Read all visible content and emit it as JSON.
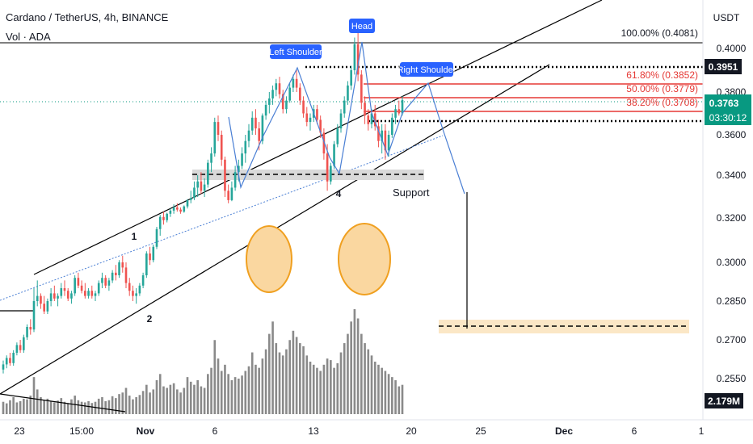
{
  "header": {
    "symbol": "Cardano / TetherUS, 4h, BINANCE",
    "volume_label": "Vol · ADA",
    "currency": "USDT"
  },
  "colors": {
    "up": "#26a69a",
    "down": "#ef5350",
    "pattern_line": "#4a7fd4",
    "channel": "#000000",
    "fib": "#e53935",
    "tag_bg": "#2962ff",
    "circle_fill": "#fad7a0",
    "circle_stroke": "#f0a020",
    "target_zone": "#fbe7c6",
    "volume_bar": "#8a8a8a",
    "price_tag": "#089981"
  },
  "chart_data": {
    "type": "candlestick",
    "price_axis": {
      "ticks": [
        "0.4000",
        "0.3800",
        "0.3600",
        "0.3400",
        "0.3200",
        "0.3000",
        "0.2850",
        "0.2700",
        "0.2550"
      ]
    },
    "time_axis": {
      "ticks": [
        "23",
        "15:00",
        "Nov",
        "6",
        "13",
        "20",
        "25",
        "Dec",
        "6",
        "1"
      ]
    },
    "fib_levels": [
      {
        "label": "100.00% (0.4081)",
        "value": 0.4081
      },
      {
        "label": "61.80% (0.3852)",
        "value": 0.3852
      },
      {
        "label": "50.00% (0.3779)",
        "value": 0.3779
      },
      {
        "label": "38.20% (0.3708)",
        "value": 0.3708
      }
    ],
    "price_labels": {
      "resistance": "0.3951",
      "last_price": "0.3763",
      "countdown": "03:30:12",
      "volume": "2.179M"
    },
    "pattern_labels": {
      "left_shoulder": "Left Shoulder",
      "head": "Head",
      "right_shoulder": "Right Shoulder",
      "support": "Support"
    },
    "wave_labels": [
      "1",
      "2",
      "4"
    ],
    "candles": [
      [
        0.2585,
        0.262,
        0.257,
        0.2605
      ],
      [
        0.2605,
        0.264,
        0.259,
        0.263
      ],
      [
        0.263,
        0.265,
        0.26,
        0.261
      ],
      [
        0.261,
        0.266,
        0.26,
        0.265
      ],
      [
        0.265,
        0.269,
        0.264,
        0.268
      ],
      [
        0.268,
        0.27,
        0.265,
        0.266
      ],
      [
        0.266,
        0.272,
        0.265,
        0.271
      ],
      [
        0.271,
        0.276,
        0.27,
        0.275
      ],
      [
        0.275,
        0.278,
        0.272,
        0.274
      ],
      [
        0.274,
        0.29,
        0.273,
        0.285
      ],
      [
        0.285,
        0.293,
        0.283,
        0.287
      ],
      [
        0.287,
        0.288,
        0.282,
        0.284
      ],
      [
        0.284,
        0.287,
        0.28,
        0.281
      ],
      [
        0.281,
        0.286,
        0.28,
        0.285
      ],
      [
        0.285,
        0.29,
        0.283,
        0.288
      ],
      [
        0.288,
        0.291,
        0.285,
        0.286
      ],
      [
        0.286,
        0.288,
        0.283,
        0.287
      ],
      [
        0.287,
        0.292,
        0.286,
        0.29
      ],
      [
        0.29,
        0.293,
        0.287,
        0.289
      ],
      [
        0.289,
        0.29,
        0.285,
        0.286
      ],
      [
        0.286,
        0.289,
        0.284,
        0.288
      ],
      [
        0.288,
        0.295,
        0.287,
        0.294
      ],
      [
        0.294,
        0.296,
        0.29,
        0.291
      ],
      [
        0.291,
        0.293,
        0.288,
        0.289
      ],
      [
        0.289,
        0.292,
        0.286,
        0.287
      ],
      [
        0.287,
        0.29,
        0.286,
        0.289
      ],
      [
        0.289,
        0.291,
        0.286,
        0.287
      ],
      [
        0.287,
        0.289,
        0.285,
        0.288
      ],
      [
        0.288,
        0.293,
        0.287,
        0.292
      ],
      [
        0.292,
        0.296,
        0.29,
        0.294
      ],
      [
        0.294,
        0.295,
        0.29,
        0.291
      ],
      [
        0.291,
        0.294,
        0.289,
        0.293
      ],
      [
        0.293,
        0.297,
        0.292,
        0.296
      ],
      [
        0.296,
        0.299,
        0.293,
        0.295
      ],
      [
        0.295,
        0.301,
        0.294,
        0.3
      ],
      [
        0.3,
        0.303,
        0.296,
        0.298
      ],
      [
        0.298,
        0.3,
        0.29,
        0.292
      ],
      [
        0.292,
        0.294,
        0.287,
        0.289
      ],
      [
        0.289,
        0.291,
        0.285,
        0.287
      ],
      [
        0.287,
        0.29,
        0.284,
        0.288
      ],
      [
        0.288,
        0.292,
        0.287,
        0.291
      ],
      [
        0.291,
        0.296,
        0.29,
        0.295
      ],
      [
        0.295,
        0.305,
        0.294,
        0.304
      ],
      [
        0.304,
        0.307,
        0.299,
        0.301
      ],
      [
        0.301,
        0.308,
        0.3,
        0.307
      ],
      [
        0.307,
        0.316,
        0.306,
        0.315
      ],
      [
        0.315,
        0.323,
        0.312,
        0.321
      ],
      [
        0.321,
        0.326,
        0.317,
        0.319
      ],
      [
        0.319,
        0.325,
        0.318,
        0.324
      ],
      [
        0.324,
        0.329,
        0.321,
        0.327
      ],
      [
        0.327,
        0.333,
        0.324,
        0.33
      ],
      [
        0.33,
        0.334,
        0.326,
        0.328
      ],
      [
        0.328,
        0.33,
        0.324,
        0.326
      ],
      [
        0.326,
        0.332,
        0.325,
        0.331
      ],
      [
        0.331,
        0.338,
        0.329,
        0.337
      ],
      [
        0.337,
        0.342,
        0.334,
        0.339
      ],
      [
        0.339,
        0.345,
        0.337,
        0.343
      ],
      [
        0.343,
        0.347,
        0.34,
        0.345
      ],
      [
        0.345,
        0.348,
        0.341,
        0.342
      ],
      [
        0.342,
        0.346,
        0.34,
        0.344
      ],
      [
        0.344,
        0.352,
        0.343,
        0.351
      ],
      [
        0.351,
        0.356,
        0.348,
        0.354
      ],
      [
        0.354,
        0.368,
        0.353,
        0.366
      ],
      [
        0.366,
        0.369,
        0.358,
        0.36
      ],
      [
        0.36,
        0.362,
        0.35,
        0.352
      ],
      [
        0.352,
        0.353,
        0.34,
        0.342
      ],
      [
        0.342,
        0.344,
        0.334,
        0.337
      ],
      [
        0.337,
        0.345,
        0.336,
        0.343
      ],
      [
        0.343,
        0.35,
        0.342,
        0.348
      ],
      [
        0.348,
        0.352,
        0.345,
        0.35
      ],
      [
        0.35,
        0.356,
        0.349,
        0.354
      ],
      [
        0.354,
        0.36,
        0.351,
        0.358
      ],
      [
        0.358,
        0.365,
        0.356,
        0.362
      ],
      [
        0.362,
        0.371,
        0.36,
        0.368
      ],
      [
        0.368,
        0.372,
        0.36,
        0.363
      ],
      [
        0.363,
        0.366,
        0.355,
        0.358
      ],
      [
        0.358,
        0.37,
        0.357,
        0.369
      ],
      [
        0.369,
        0.376,
        0.367,
        0.374
      ],
      [
        0.374,
        0.38,
        0.37,
        0.377
      ],
      [
        0.377,
        0.383,
        0.374,
        0.381
      ],
      [
        0.381,
        0.386,
        0.378,
        0.384
      ],
      [
        0.384,
        0.387,
        0.377,
        0.379
      ],
      [
        0.379,
        0.381,
        0.37,
        0.372
      ],
      [
        0.372,
        0.378,
        0.37,
        0.376
      ],
      [
        0.376,
        0.384,
        0.375,
        0.382
      ],
      [
        0.382,
        0.388,
        0.38,
        0.386
      ],
      [
        0.386,
        0.39,
        0.38,
        0.382
      ],
      [
        0.382,
        0.384,
        0.374,
        0.376
      ],
      [
        0.376,
        0.378,
        0.368,
        0.37
      ],
      [
        0.37,
        0.373,
        0.364,
        0.366
      ],
      [
        0.366,
        0.37,
        0.362,
        0.368
      ],
      [
        0.368,
        0.374,
        0.366,
        0.372
      ],
      [
        0.372,
        0.374,
        0.365,
        0.367
      ],
      [
        0.367,
        0.369,
        0.359,
        0.361
      ],
      [
        0.361,
        0.363,
        0.352,
        0.354
      ],
      [
        0.354,
        0.357,
        0.342,
        0.345
      ],
      [
        0.345,
        0.351,
        0.344,
        0.35
      ],
      [
        0.35,
        0.358,
        0.349,
        0.357
      ],
      [
        0.357,
        0.365,
        0.356,
        0.363
      ],
      [
        0.363,
        0.372,
        0.361,
        0.37
      ],
      [
        0.37,
        0.378,
        0.368,
        0.376
      ],
      [
        0.376,
        0.385,
        0.374,
        0.383
      ],
      [
        0.383,
        0.392,
        0.381,
        0.39
      ],
      [
        0.39,
        0.405,
        0.388,
        0.402
      ],
      [
        0.402,
        0.408,
        0.385,
        0.388
      ],
      [
        0.388,
        0.39,
        0.372,
        0.375
      ],
      [
        0.375,
        0.378,
        0.365,
        0.369
      ],
      [
        0.369,
        0.372,
        0.362,
        0.365
      ],
      [
        0.365,
        0.372,
        0.363,
        0.37
      ],
      [
        0.37,
        0.374,
        0.362,
        0.364
      ],
      [
        0.364,
        0.367,
        0.356,
        0.358
      ],
      [
        0.358,
        0.365,
        0.354,
        0.362
      ],
      [
        0.362,
        0.365,
        0.352,
        0.355
      ],
      [
        0.355,
        0.362,
        0.353,
        0.36
      ],
      [
        0.36,
        0.37,
        0.359,
        0.368
      ],
      [
        0.368,
        0.374,
        0.365,
        0.372
      ],
      [
        0.372,
        0.376,
        0.369,
        0.37
      ],
      [
        0.37,
        0.378,
        0.369,
        0.3763
      ]
    ],
    "volumes": [
      40,
      35,
      45,
      55,
      38,
      42,
      50,
      48,
      60,
      120,
      80,
      55,
      45,
      50,
      42,
      38,
      44,
      52,
      40,
      36,
      48,
      60,
      45,
      40,
      38,
      42,
      36,
      40,
      50,
      55,
      42,
      45,
      58,
      52,
      65,
      70,
      85,
      60,
      48,
      55,
      62,
      75,
      95,
      70,
      80,
      110,
      130,
      90,
      85,
      95,
      100,
      80,
      70,
      85,
      120,
      105,
      95,
      110,
      90,
      85,
      130,
      150,
      240,
      180,
      140,
      160,
      130,
      110,
      120,
      115,
      125,
      140,
      155,
      200,
      160,
      150,
      180,
      210,
      260,
      300,
      230,
      200,
      190,
      210,
      240,
      270,
      250,
      230,
      220,
      190,
      170,
      160,
      150,
      140,
      160,
      180,
      175,
      150,
      165,
      200,
      230,
      260,
      300,
      340,
      310,
      260,
      230,
      210,
      190,
      170,
      160,
      150,
      140,
      130,
      120,
      110,
      90,
      95
    ]
  }
}
